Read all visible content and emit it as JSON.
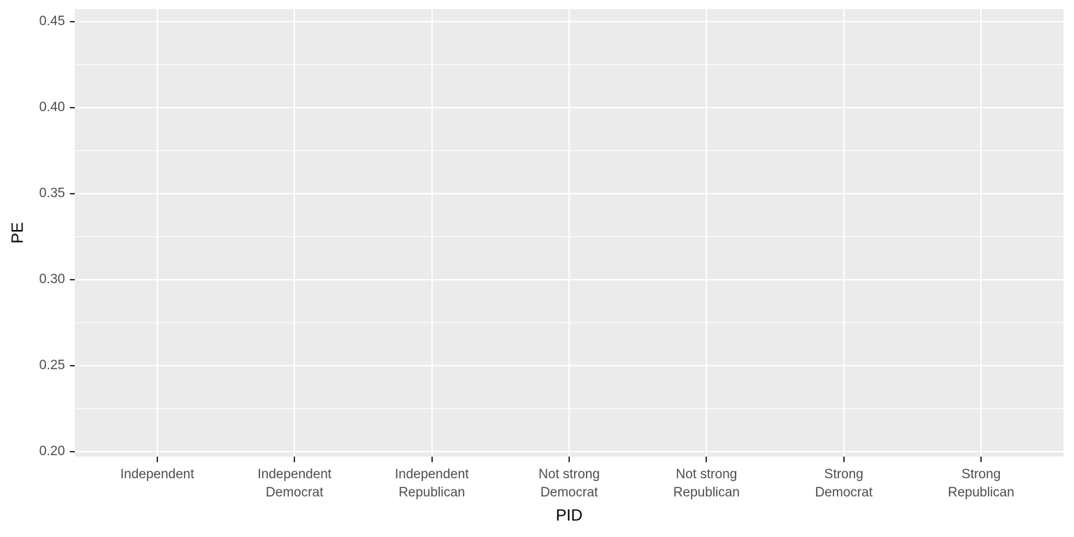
{
  "chart_data": {
    "type": "scatter",
    "title": "",
    "xlabel": "PID",
    "ylabel": "PE",
    "categories": [
      "Independent",
      "Independent\nDemocrat",
      "Independent\nRepublican",
      "Not strong\nDemocrat",
      "Not strong\nRepublican",
      "Strong\nDemocrat",
      "Strong\nRepublican"
    ],
    "series": [],
    "y_ticks": [
      {
        "label": "0.20",
        "value": 0.2
      },
      {
        "label": "0.25",
        "value": 0.25
      },
      {
        "label": "0.30",
        "value": 0.3
      },
      {
        "label": "0.35",
        "value": 0.35
      },
      {
        "label": "0.40",
        "value": 0.4
      },
      {
        "label": "0.45",
        "value": 0.45
      }
    ],
    "ylim": [
      0.1972,
      0.4573
    ],
    "grid": {
      "horizontal_major": true,
      "horizontal_minor": true,
      "vertical_major": true,
      "vertical_minor": false
    },
    "legend": "none",
    "style": "ggplot2-gray-theme",
    "colors": {
      "page_bg": "#ffffff",
      "panel_bg": "#ebebeb",
      "grid": "#ffffff",
      "tick": "#333333",
      "tick_label": "#4d4d4d",
      "title": "#000000"
    }
  }
}
